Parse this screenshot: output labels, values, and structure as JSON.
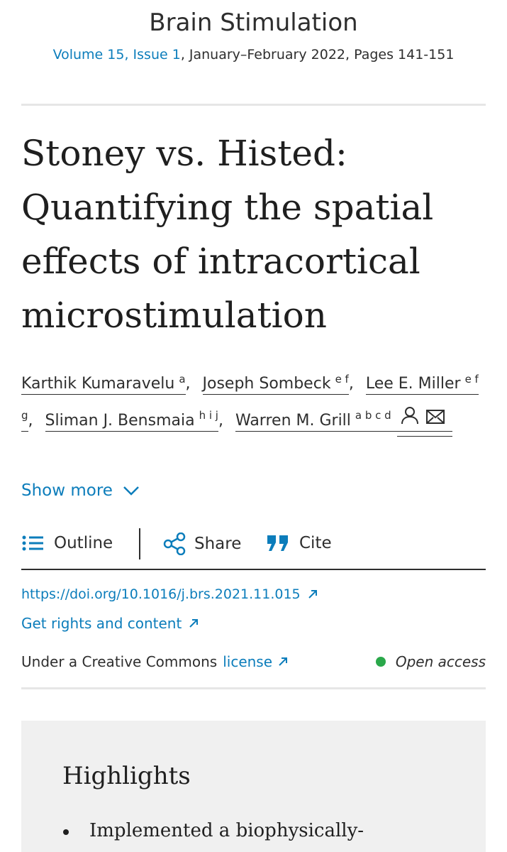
{
  "header": {
    "journal": "Brain Stimulation",
    "issue_link": "Volume 15, Issue 1",
    "issue_info": ", January–February 2022, Pages 141-151"
  },
  "article": {
    "title": "Stoney vs. Histed: Quantifying the spatial effects of intracortical microstimulation",
    "authors": [
      {
        "name": "Karthik Kumaravelu",
        "affiliations": "a",
        "separator": ","
      },
      {
        "name": "Joseph Sombeck",
        "affiliations": "e f",
        "separator": ","
      },
      {
        "name": "Lee E. Miller",
        "affiliations": "e f g",
        "separator": ","
      },
      {
        "name": "Sliman J. Bensmaia",
        "affiliations": "h i j",
        "separator": ","
      },
      {
        "name": "Warren M. Grill",
        "affiliations": "a b c d"
      }
    ],
    "show_more": "Show more",
    "actions": [
      "Outline",
      "Share",
      "Cite"
    ],
    "doi": "https://doi.org/10.1016/j.brs.2021.11.015",
    "rights": "Get rights and content",
    "license_prefix": "Under a Creative Commons",
    "license_link": "license",
    "access": "Open access"
  },
  "highlights": {
    "heading": "Highlights",
    "items": [
      "Implemented a biophysically-"
    ]
  }
}
